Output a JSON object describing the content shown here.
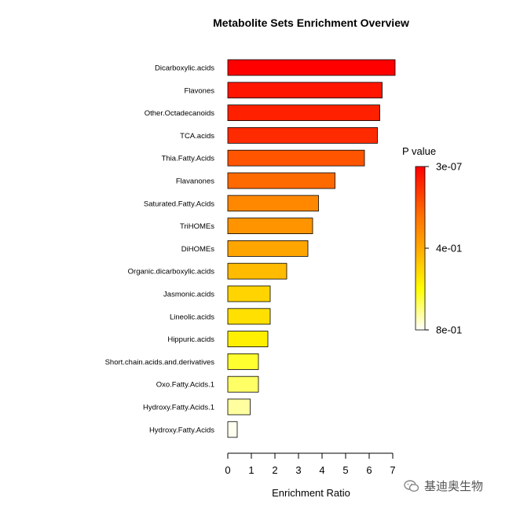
{
  "chart_data": {
    "type": "bar",
    "orientation": "horizontal",
    "title": "Metabolite Sets Enrichment Overview",
    "xlabel": "Enrichment Ratio",
    "ylabel": "",
    "xlim": [
      0,
      7
    ],
    "xticks": [
      0,
      1,
      2,
      3,
      4,
      5,
      6,
      7
    ],
    "categories": [
      "Dicarboxylic.acids",
      "Flavones",
      "Other.Octadecanoids",
      "TCA.acids",
      "Thia.Fatty.Acids",
      "Flavanones",
      "Saturated.Fatty.Acids",
      "TriHOMEs",
      "DiHOMEs",
      "Organic.dicarboxylic.acids",
      "Jasmonic.acids",
      "Lineolic.acids",
      "Hippuric.acids",
      "Short.chain.acids.and.derivatives",
      "Oxo.Fatty.Acids.1",
      "Hydroxy.Fatty.Acids.1",
      "Hydroxy.Fatty.Acids"
    ],
    "values": [
      7.1,
      6.55,
      6.45,
      6.35,
      5.8,
      4.55,
      3.85,
      3.6,
      3.4,
      2.5,
      1.8,
      1.8,
      1.7,
      1.3,
      1.3,
      0.95,
      0.4
    ],
    "colors": [
      "#FF0000",
      "#FF1500",
      "#FF2000",
      "#FF2B00",
      "#FF5500",
      "#FF6A00",
      "#FF8800",
      "#FF9400",
      "#FFA500",
      "#FFBB00",
      "#FFD400",
      "#FFE000",
      "#FFEF00",
      "#FFFF30",
      "#FFFF66",
      "#FFFFA0",
      "#FFFFF0"
    ],
    "legend": {
      "title": "P value",
      "labels": [
        "3e-07",
        "4e-01",
        "8e-01"
      ],
      "position": "right"
    },
    "grid": false
  },
  "watermark": {
    "text": "基迪奥生物",
    "icon": "wechat-icon"
  }
}
